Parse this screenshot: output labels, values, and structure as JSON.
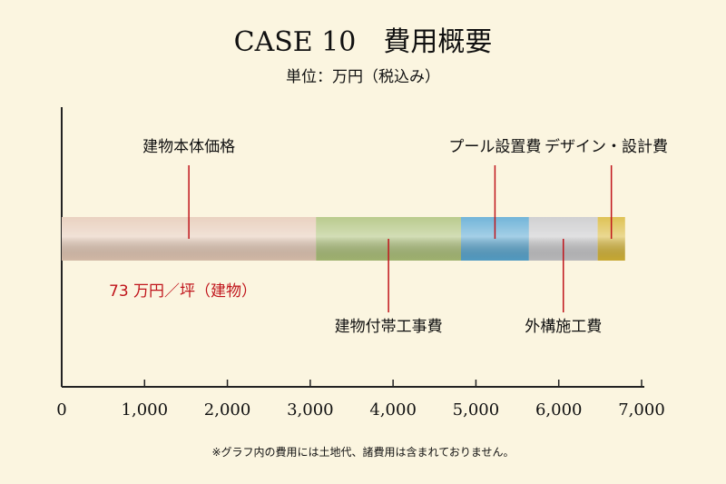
{
  "chart_data": {
    "type": "bar",
    "orientation": "horizontal",
    "stacked": true,
    "title": "CASE 10　費用概要",
    "subtitle": "単位：万円（税込み）",
    "xlim": [
      0,
      7000
    ],
    "ticks": [
      "0",
      "1,000",
      "2,000",
      "3,000",
      "4,000",
      "5,000",
      "6,000",
      "7,000"
    ],
    "tick_values": [
      0,
      1000,
      2000,
      3000,
      4000,
      5000,
      6000,
      7000
    ],
    "grid": false,
    "series": [
      {
        "name": "建物本体価格",
        "value": 3070,
        "color": "#e6cab6",
        "label_position": "above"
      },
      {
        "name": "建物付帯工事費",
        "value": 1750,
        "color": "#aec27a",
        "label_position": "below"
      },
      {
        "name": "プール設置費",
        "value": 820,
        "color": "#5aa8d2",
        "label_position": "above"
      },
      {
        "name": "外構施工費",
        "value": 830,
        "color": "#c8c8ca",
        "label_position": "below"
      },
      {
        "name": "デザイン・設計費",
        "value": 330,
        "color": "#d9b838",
        "label_position": "above"
      }
    ],
    "annotation": "73 万円／坪（建物）",
    "footnote": "※グラフ内の費用には土地代、諸費用は含まれておりません。"
  },
  "colors": {
    "background": "#fbf5e0",
    "leader": "#c0141b",
    "annotation": "#c0141b",
    "axis": "#222222"
  }
}
